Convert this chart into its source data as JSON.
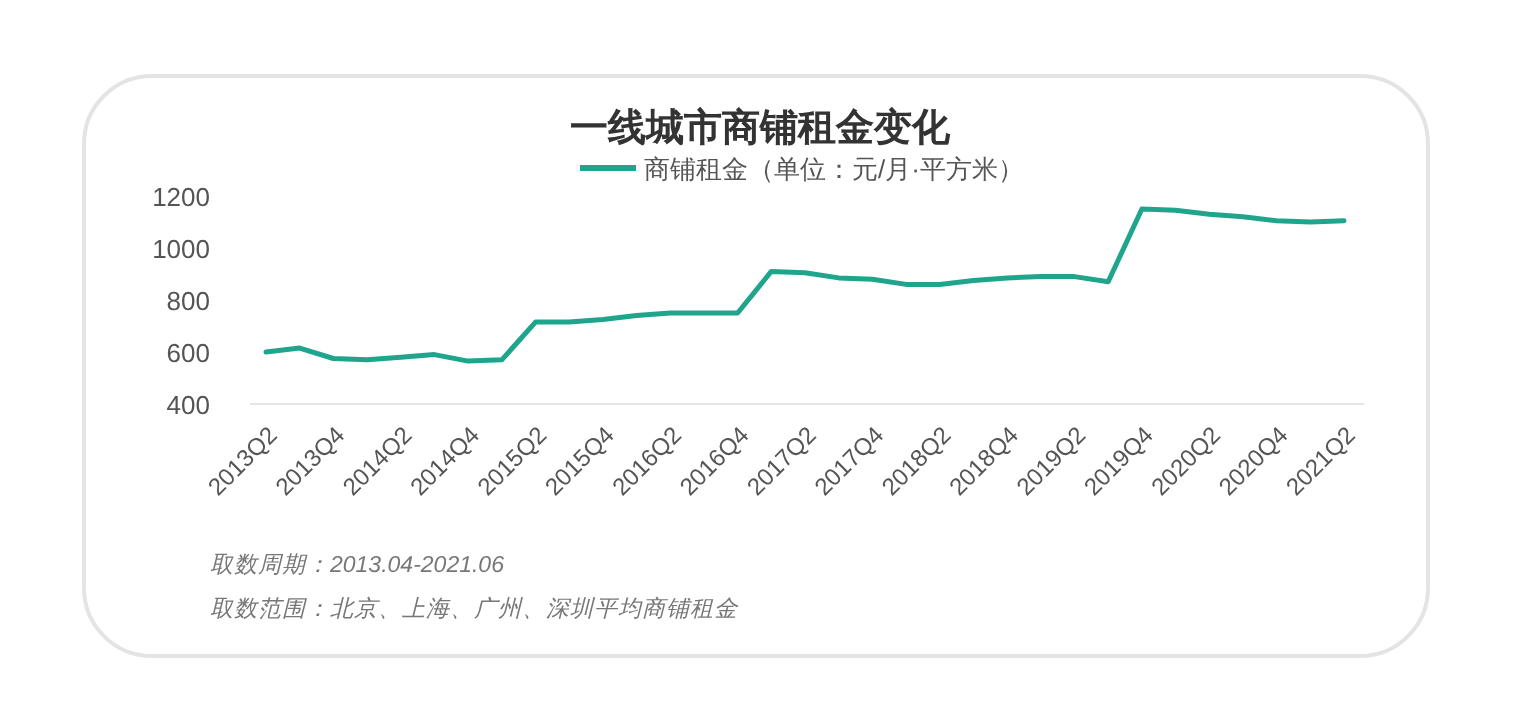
{
  "chart_data": {
    "type": "line",
    "title": "一线城市商铺租金变化",
    "categories": [
      "2013Q2",
      null,
      "2013Q4",
      null,
      "2014Q2",
      null,
      "2014Q4",
      null,
      "2015Q2",
      null,
      "2015Q4",
      null,
      "2016Q2",
      null,
      "2016Q4",
      null,
      "2017Q2",
      null,
      "2017Q4",
      null,
      "2018Q2",
      null,
      "2018Q4",
      null,
      "2019Q2",
      null,
      "2019Q4",
      null,
      "2020Q2",
      null,
      "2020Q4",
      null,
      "2021Q2"
    ],
    "series": [
      {
        "name": "商铺租金（单位：元/月·平方米）",
        "color": "#1fa58c",
        "values": [
          600,
          615,
          575,
          570,
          580,
          590,
          565,
          570,
          715,
          715,
          725,
          740,
          750,
          750,
          750,
          910,
          905,
          885,
          880,
          860,
          860,
          875,
          885,
          890,
          890,
          870,
          1150,
          1145,
          1130,
          1120,
          1105,
          1100,
          1105
        ]
      }
    ],
    "ylim": [
      400,
      1200
    ],
    "yticks": [
      400,
      600,
      800,
      1000,
      1200
    ],
    "grid": false,
    "legend": "top",
    "marker": "none",
    "line_style": "solid",
    "annotations": [
      "取数周期：2013.04-2021.06",
      "取数范围：北京、上海、广州、深圳平均商铺租金"
    ]
  }
}
